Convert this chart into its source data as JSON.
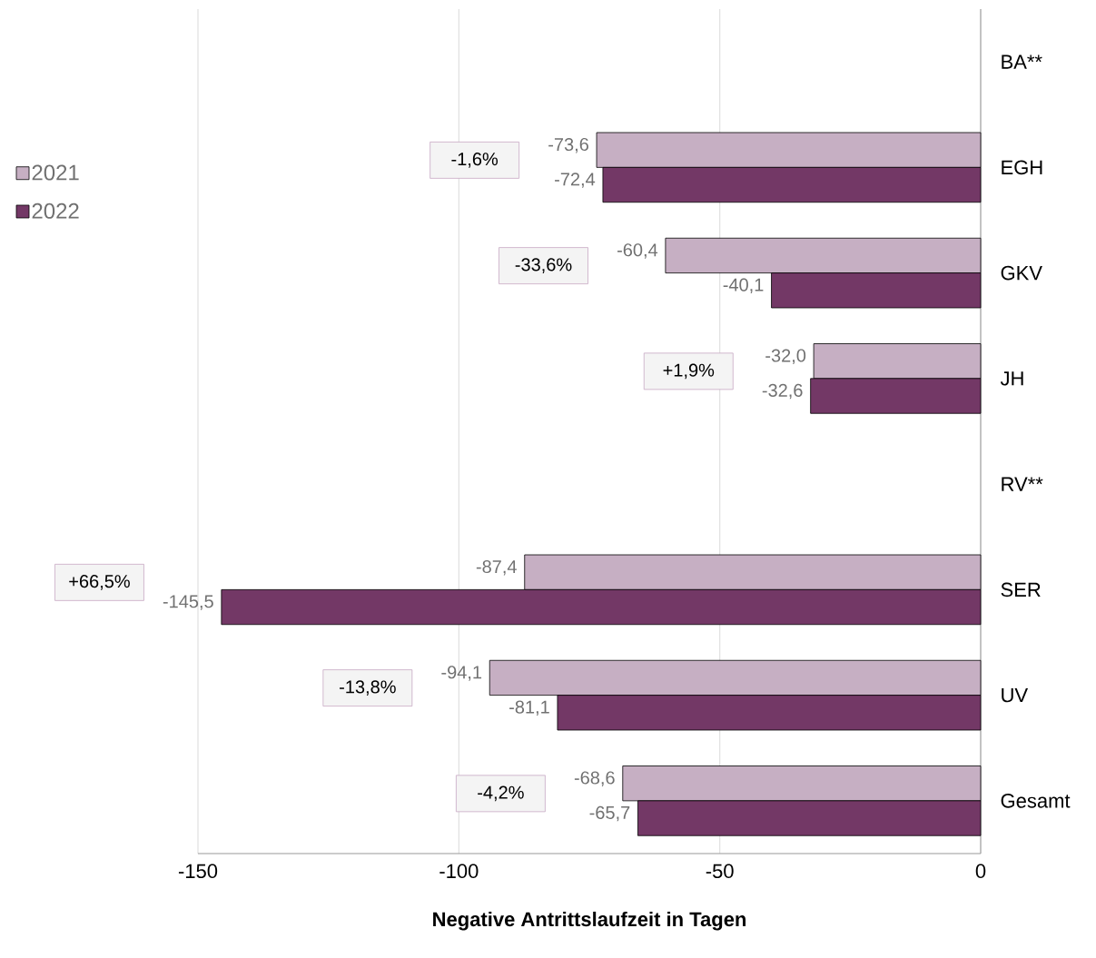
{
  "chart_data": {
    "type": "bar",
    "orientation": "horizontal",
    "xlabel": "Negative Antrittslaufzeit in Tagen",
    "categories": [
      "BA**",
      "EGH",
      "GKV",
      "JH",
      "RV**",
      "SER",
      "UV",
      "Gesamt"
    ],
    "series": [
      {
        "name": "2021",
        "color": "#c6afc3",
        "values": [
          null,
          -73.6,
          -60.4,
          -32.0,
          null,
          -87.4,
          -94.1,
          -68.6
        ],
        "value_labels": [
          null,
          "-73,6",
          "-60,4",
          "-32,0",
          null,
          "-87,4",
          "-94,1",
          "-68,6"
        ]
      },
      {
        "name": "2022",
        "color": "#733866",
        "values": [
          null,
          -72.4,
          -40.1,
          -32.6,
          null,
          -145.5,
          -81.1,
          -65.7
        ],
        "value_labels": [
          null,
          "-72,4",
          "-40,1",
          "-32,6",
          null,
          "-145,5",
          "-81,1",
          "-65,7"
        ]
      }
    ],
    "annotations": [
      "-1,6%",
      "-33,6%",
      "+1,9%",
      "+66,5%",
      "-13,8%",
      "-4,2%"
    ],
    "xlim": [
      -150,
      0
    ],
    "xticks": [
      -150,
      -100,
      -50,
      0
    ],
    "grid": "x",
    "legend": "top left"
  }
}
